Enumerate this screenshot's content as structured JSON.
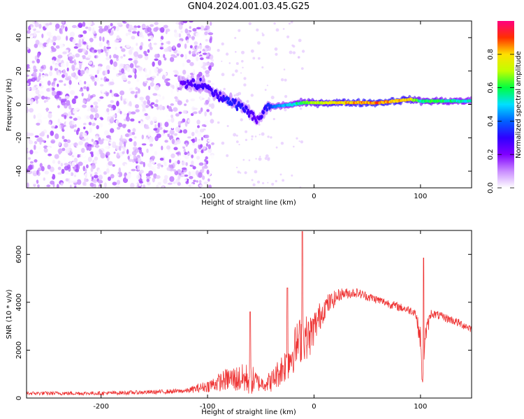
{
  "title": "GN04.2024.001.03.45.G25",
  "chart_data": [
    {
      "type": "heatmap",
      "xlabel": "Height of straight line (km)",
      "ylabel": "Frequency (Hz)",
      "xlim": [
        -270,
        148
      ],
      "ylim": [
        -50,
        50
      ],
      "xticks": [
        -200,
        -100,
        0,
        100
      ],
      "yticks": [
        -40,
        -20,
        0,
        20,
        40
      ],
      "colorbar": {
        "label": "Normalized spectral amplitude",
        "range": [
          0,
          1
        ],
        "ticks": [
          0.0,
          0.2,
          0.4,
          0.6,
          0.8
        ],
        "stops": [
          "#ffffff",
          "#c98cff",
          "#8000ff",
          "#3000ff",
          "#0060ff",
          "#00e0ff",
          "#00ff40",
          "#c0ff00",
          "#ffe000",
          "#ff3000",
          "#ff0080"
        ]
      },
      "ridge": [
        {
          "x": -125,
          "y": 13,
          "amp": 0.25
        },
        {
          "x": -110,
          "y": 12,
          "amp": 0.3
        },
        {
          "x": -100,
          "y": 10,
          "amp": 0.3
        },
        {
          "x": -90,
          "y": 5,
          "amp": 0.3
        },
        {
          "x": -80,
          "y": 2,
          "amp": 0.35
        },
        {
          "x": -70,
          "y": 0,
          "amp": 0.35
        },
        {
          "x": -60,
          "y": -5,
          "amp": 0.3
        },
        {
          "x": -52,
          "y": -10,
          "amp": 0.25
        },
        {
          "x": -45,
          "y": -2,
          "amp": 0.35
        },
        {
          "x": -35,
          "y": -1,
          "amp": 0.45
        },
        {
          "x": -20,
          "y": 0,
          "amp": 0.55
        },
        {
          "x": -10,
          "y": 1,
          "amp": 0.65
        },
        {
          "x": 0,
          "y": 1,
          "amp": 0.75
        },
        {
          "x": 20,
          "y": 1,
          "amp": 0.85
        },
        {
          "x": 40,
          "y": 1,
          "amp": 0.9
        },
        {
          "x": 60,
          "y": 1,
          "amp": 0.92
        },
        {
          "x": 75,
          "y": 2,
          "amp": 0.9
        },
        {
          "x": 90,
          "y": 3,
          "amp": 0.85
        },
        {
          "x": 100,
          "y": 2,
          "amp": 0.6
        },
        {
          "x": 110,
          "y": 2,
          "amp": 0.65
        },
        {
          "x": 130,
          "y": 2,
          "amp": 0.6
        },
        {
          "x": 148,
          "y": 2,
          "amp": 0.55
        }
      ]
    },
    {
      "type": "line",
      "xlabel": "Height of straight line (km)",
      "ylabel": "SNR (10 * v/v)",
      "xlim": [
        -270,
        148
      ],
      "ylim": [
        0,
        7000
      ],
      "xticks": [
        -200,
        -100,
        0,
        100
      ],
      "yticks": [
        0,
        2000,
        4000,
        6000
      ],
      "color": "#ee3333",
      "series": [
        {
          "x": [
            -270,
            -200,
            -150,
            -120,
            -100,
            -80,
            -60,
            -50,
            -40,
            -25,
            -15,
            -10,
            -5,
            10,
            25,
            40,
            60,
            80,
            95,
            100,
            102,
            104,
            110,
            130,
            148
          ],
          "mean": [
            200,
            200,
            250,
            300,
            500,
            800,
            800,
            600,
            700,
            1500,
            2300,
            2600,
            2500,
            3800,
            4350,
            4400,
            4100,
            3800,
            3600,
            2500,
            400,
            2500,
            3550,
            3250,
            2900
          ],
          "noise": [
            80,
            80,
            90,
            100,
            250,
            500,
            700,
            300,
            450,
            800,
            1000,
            1000,
            900,
            500,
            250,
            200,
            180,
            180,
            180,
            500,
            300,
            500,
            180,
            180,
            180
          ]
        }
      ],
      "spikes": [
        {
          "x": -60,
          "y": 3600
        },
        {
          "x": -25,
          "y": 4600
        },
        {
          "x": -11,
          "y": 6950
        },
        {
          "x": 103,
          "y": 5850
        }
      ]
    }
  ]
}
